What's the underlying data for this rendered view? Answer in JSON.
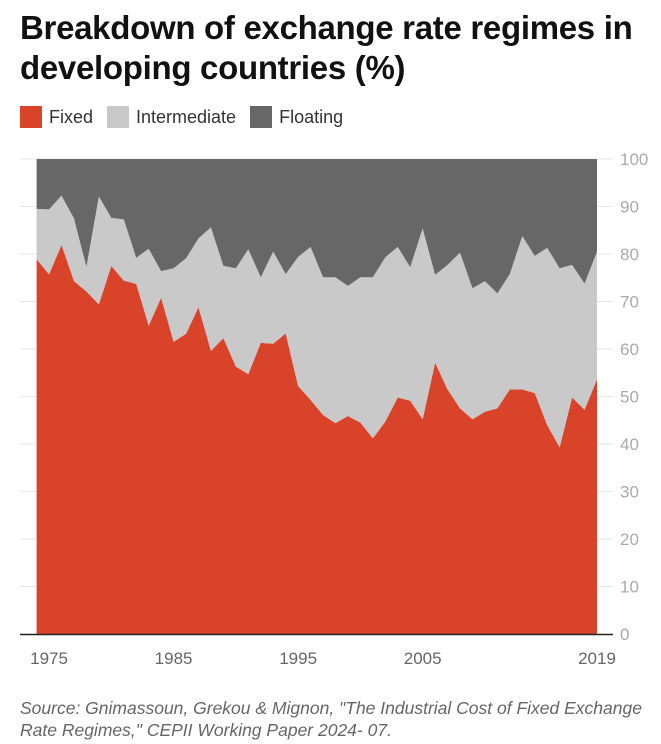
{
  "chart_data": {
    "type": "area",
    "stacked": true,
    "title": "Breakdown of exchange rate regimes in developing countries (%)",
    "xlabel": "",
    "ylabel": "",
    "ylim": [
      0,
      100
    ],
    "y_ticks": [
      0,
      10,
      20,
      30,
      40,
      50,
      60,
      70,
      80,
      90,
      100
    ],
    "y_axis_side": "right",
    "x_tick_labels": [
      "1975",
      "1985",
      "1995",
      "2005",
      "2019"
    ],
    "grid": true,
    "legend_position": "top-left",
    "x": [
      1974,
      1975,
      1976,
      1977,
      1978,
      1979,
      1980,
      1981,
      1982,
      1983,
      1984,
      1985,
      1986,
      1987,
      1988,
      1989,
      1990,
      1991,
      1992,
      1993,
      1994,
      1995,
      1996,
      1997,
      1998,
      1999,
      2000,
      2001,
      2002,
      2003,
      2004,
      2005,
      2006,
      2007,
      2008,
      2009,
      2010,
      2011,
      2012,
      2013,
      2014,
      2015,
      2016,
      2017,
      2018,
      2019
    ],
    "series": [
      {
        "name": "Fixed",
        "color": "#d9432a",
        "values": [
          78.9,
          75.7,
          81.9,
          74.3,
          72.1,
          69.4,
          77.5,
          74.4,
          73.7,
          64.9,
          70.8,
          61.5,
          63.2,
          68.8,
          59.6,
          62.3,
          56.3,
          54.7,
          61.3,
          61.1,
          63.3,
          52.2,
          49.3,
          46.1,
          44.4,
          45.9,
          44.5,
          41.2,
          44.7,
          49.8,
          49.1,
          45.2,
          57.1,
          51.5,
          47.5,
          45.2,
          46.8,
          47.5,
          51.5,
          51.5,
          50.7,
          44.0,
          39.3,
          49.8,
          47.2,
          53.6
        ]
      },
      {
        "name": "Intermediate",
        "color": "#c9c9c9",
        "values": [
          10.6,
          13.7,
          10.4,
          13.2,
          5.2,
          22.7,
          10.1,
          12.9,
          5.5,
          16.2,
          5.6,
          15.5,
          15.9,
          14.5,
          26.0,
          15.2,
          20.7,
          26.3,
          13.8,
          19.4,
          12.5,
          27.2,
          32.2,
          29.0,
          30.7,
          27.4,
          30.6,
          33.9,
          34.6,
          31.7,
          28.1,
          40.2,
          18.5,
          26.2,
          32.8,
          27.6,
          27.5,
          24.2,
          24.3,
          32.3,
          28.9,
          37.3,
          37.7,
          27.9,
          26.6,
          26.9
        ]
      },
      {
        "name": "Floating",
        "color": "#676767",
        "values": [
          10.5,
          10.6,
          7.7,
          12.5,
          22.7,
          7.9,
          12.4,
          12.7,
          20.8,
          18.9,
          23.6,
          23.0,
          20.9,
          16.7,
          14.4,
          22.5,
          23.0,
          19.0,
          24.9,
          19.5,
          24.2,
          20.6,
          18.5,
          24.9,
          24.9,
          26.7,
          24.9,
          24.9,
          20.7,
          18.5,
          22.8,
          14.6,
          24.4,
          22.3,
          19.7,
          27.2,
          25.7,
          28.3,
          24.2,
          16.2,
          20.4,
          18.7,
          23.0,
          22.3,
          26.2,
          19.5
        ]
      }
    ],
    "source": "Source: Gnimassoun, Grekou & Mignon, \"The Industrial Cost of Fixed Exchange Rate Regimes,\" CEPII Working Paper 2024- 07."
  }
}
